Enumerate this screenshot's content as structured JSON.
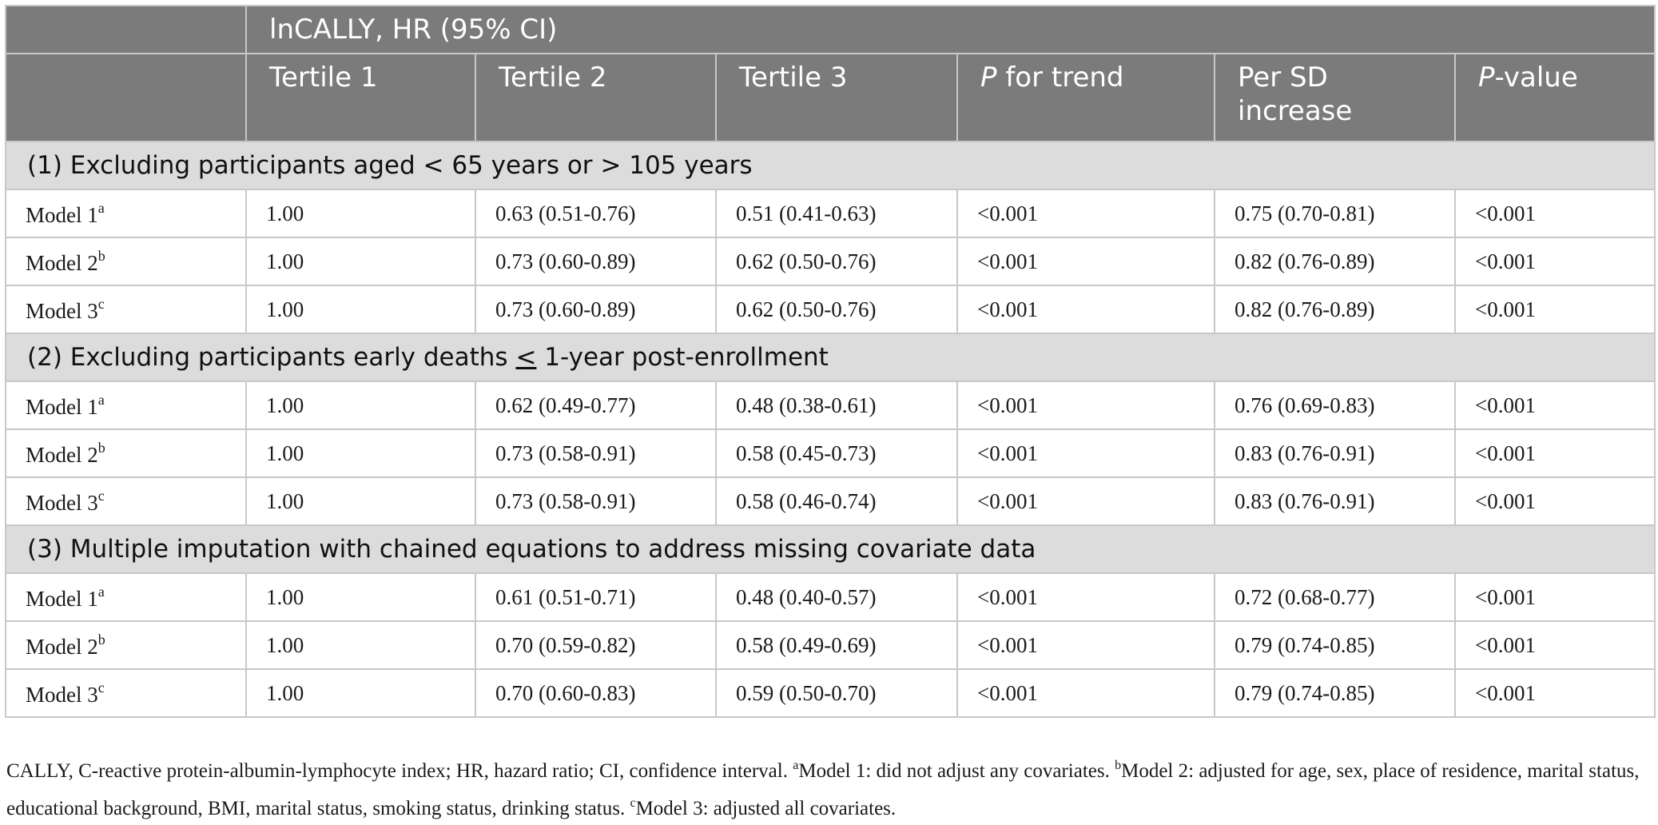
{
  "header": {
    "group_label": "lnCALLY, HR (95% CI)",
    "columns": {
      "tertile1": "Tertile 1",
      "tertile2": "Tertile 2",
      "tertile3": "Tertile 3",
      "p_trend_italic": "P",
      "p_trend_rest": " for trend",
      "per_sd_line1": "Per SD",
      "per_sd_line2": "increase",
      "p_value_italic": "P",
      "p_value_rest": "-value"
    }
  },
  "sections": [
    {
      "title": "(1) Excluding participants aged < 65 years or > 105 years",
      "rows": [
        {
          "model": "Model 1",
          "sup": "a",
          "t1": "1.00",
          "t2": "0.63 (0.51-0.76)",
          "t3": "0.51 (0.41-0.63)",
          "p_trend": "<0.001",
          "per_sd": "0.75 (0.70-0.81)",
          "p_value": "<0.001"
        },
        {
          "model": "Model 2",
          "sup": "b",
          "t1": "1.00",
          "t2": "0.73 (0.60-0.89)",
          "t3": "0.62 (0.50-0.76)",
          "p_trend": "<0.001",
          "per_sd": "0.82 (0.76-0.89)",
          "p_value": "<0.001"
        },
        {
          "model": "Model 3",
          "sup": "c",
          "t1": "1.00",
          "t2": "0.73 (0.60-0.89)",
          "t3": "0.62 (0.50-0.76)",
          "p_trend": "<0.001",
          "per_sd": "0.82 (0.76-0.89)",
          "p_value": "<0.001"
        }
      ]
    },
    {
      "title_before": "(2) Excluding participants early deaths ",
      "title_symbol": "<",
      "title_after": " 1-year post-enrollment",
      "rows": [
        {
          "model": "Model 1",
          "sup": "a",
          "t1": "1.00",
          "t2": "0.62 (0.49-0.77)",
          "t3": "0.48 (0.38-0.61)",
          "p_trend": "<0.001",
          "per_sd": "0.76 (0.69-0.83)",
          "p_value": "<0.001"
        },
        {
          "model": "Model 2",
          "sup": "b",
          "t1": "1.00",
          "t2": "0.73 (0.58-0.91)",
          "t3": "0.58 (0.45-0.73)",
          "p_trend": "<0.001",
          "per_sd": "0.83 (0.76-0.91)",
          "p_value": "<0.001"
        },
        {
          "model": "Model 3",
          "sup": "c",
          "t1": "1.00",
          "t2": "0.73 (0.58-0.91)",
          "t3": "0.58 (0.46-0.74)",
          "p_trend": "<0.001",
          "per_sd": "0.83 (0.76-0.91)",
          "p_value": "<0.001"
        }
      ]
    },
    {
      "title": "(3) Multiple imputation with chained equations to address missing covariate data",
      "rows": [
        {
          "model": "Model 1",
          "sup": "a",
          "t1": "1.00",
          "t2": "0.61 (0.51-0.71)",
          "t3": "0.48 (0.40-0.57)",
          "p_trend": "<0.001",
          "per_sd": "0.72 (0.68-0.77)",
          "p_value": "<0.001"
        },
        {
          "model": "Model 2",
          "sup": "b",
          "t1": "1.00",
          "t2": "0.70 (0.59-0.82)",
          "t3": "0.58 (0.49-0.69)",
          "p_trend": "<0.001",
          "per_sd": "0.79 (0.74-0.85)",
          "p_value": "<0.001"
        },
        {
          "model": "Model 3",
          "sup": "c",
          "t1": "1.00",
          "t2": "0.70 (0.60-0.83)",
          "t3": "0.59 (0.50-0.70)",
          "p_trend": "<0.001",
          "per_sd": "0.79 (0.74-0.85)",
          "p_value": "<0.001"
        }
      ]
    }
  ],
  "footnote": {
    "abbrev": "CALLY, C-reactive protein-albumin-lymphocyte index; HR, hazard ratio; CI, confidence interval. ",
    "a_sup": "a",
    "a_text": "Model 1: did not adjust any covariates. ",
    "b_sup": "b",
    "b_text": "Model 2: adjusted for age, sex, place of residence, marital status, educational background, BMI, marital status, smoking status, drinking status. ",
    "c_sup": "c",
    "c_text": "Model 3: adjusted all covariates."
  }
}
